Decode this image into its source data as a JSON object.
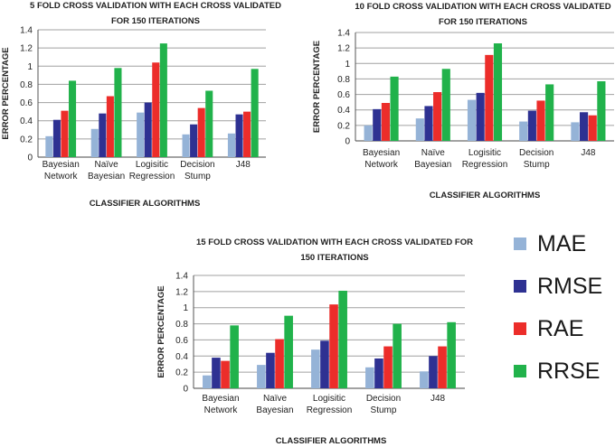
{
  "colors": {
    "MAE": "#95b3d7",
    "RMSE": "#2e3192",
    "RAE": "#ec2d2a",
    "RRSE": "#21b24b"
  },
  "legend": {
    "items": [
      {
        "label": "MAE",
        "color": "#95b3d7"
      },
      {
        "label": "RMSE",
        "color": "#2e3192"
      },
      {
        "label": "RAE",
        "color": "#ec2d2a"
      },
      {
        "label": "RRSE",
        "color": "#21b24b"
      }
    ]
  },
  "chart_data": [
    {
      "type": "bar",
      "title": [
        "5 FOLD CROSS VALIDATION WITH EACH CROSS VALIDATED",
        "FOR 150 ITERATIONS"
      ],
      "xlabel": "CLASSIFIER ALGORITHMS",
      "ylabel": "ERROR PERCENTAGE",
      "ylim": [
        0,
        1.4
      ],
      "yticks": [
        "0",
        "0.2",
        "0.4",
        "0.6",
        "0.8",
        "1",
        "1.2",
        "1.4"
      ],
      "categories": [
        [
          "Bayesian",
          "Network"
        ],
        [
          "Naïve",
          "Bayesian"
        ],
        [
          "Logisitic",
          "Regression"
        ],
        [
          "Decision",
          "Stump"
        ],
        [
          "J48"
        ]
      ],
      "grid": true,
      "series": [
        {
          "name": "MAE",
          "values": [
            0.23,
            0.31,
            0.49,
            0.25,
            0.26
          ]
        },
        {
          "name": "RMSE",
          "values": [
            0.41,
            0.48,
            0.6,
            0.36,
            0.47
          ]
        },
        {
          "name": "RAE",
          "values": [
            0.51,
            0.67,
            1.04,
            0.54,
            0.5
          ]
        },
        {
          "name": "RRSE",
          "values": [
            0.84,
            0.98,
            1.25,
            0.73,
            0.97
          ]
        }
      ]
    },
    {
      "type": "bar",
      "title": [
        "10 FOLD CROSS VALIDATION WITH EACH CROSS VALIDATED",
        "FOR 150 ITERATIONS"
      ],
      "xlabel": "CLASSIFIER ALGORITHMS",
      "ylabel": "ERROR PERCENTAGE",
      "ylim": [
        0,
        1.4
      ],
      "yticks": [
        "0",
        "0.2",
        "0.4",
        "0.6",
        "0.8",
        "1",
        "1.2",
        "1.4"
      ],
      "categories": [
        [
          "Bayesian",
          "Network"
        ],
        [
          "Naïve",
          "Bayesian"
        ],
        [
          "Logisitic",
          "Regression"
        ],
        [
          "Decision",
          "Stump"
        ],
        [
          "J48"
        ]
      ],
      "grid": true,
      "series": [
        {
          "name": "MAE",
          "values": [
            0.2,
            0.29,
            0.53,
            0.25,
            0.24
          ]
        },
        {
          "name": "RMSE",
          "values": [
            0.41,
            0.45,
            0.62,
            0.39,
            0.37
          ]
        },
        {
          "name": "RAE",
          "values": [
            0.49,
            0.63,
            1.11,
            0.52,
            0.33
          ]
        },
        {
          "name": "RRSE",
          "values": [
            0.83,
            0.93,
            1.26,
            0.73,
            0.77
          ]
        }
      ]
    },
    {
      "type": "bar",
      "title": [
        "15 FOLD CROSS VALIDATION WITH EACH CROSS VALIDATED FOR",
        "150 ITERATIONS"
      ],
      "xlabel": "CLASSIFIER ALGORITHMS",
      "ylabel": "ERROR PERCENTAGE",
      "ylim": [
        0,
        1.4
      ],
      "yticks": [
        "0",
        "0.2",
        "0.4",
        "0.6",
        "0.8",
        "1",
        "1.2",
        "1.4"
      ],
      "categories": [
        [
          "Bayesian",
          "Network"
        ],
        [
          "Naïve",
          "Bayesian"
        ],
        [
          "Logisitic",
          "Regression"
        ],
        [
          "Decision",
          "Stump"
        ],
        [
          "J48"
        ]
      ],
      "grid": true,
      "series": [
        {
          "name": "MAE",
          "values": [
            0.16,
            0.29,
            0.48,
            0.26,
            0.21
          ]
        },
        {
          "name": "RMSE",
          "values": [
            0.38,
            0.44,
            0.59,
            0.37,
            0.4
          ]
        },
        {
          "name": "RAE",
          "values": [
            0.34,
            0.61,
            1.04,
            0.52,
            0.52
          ]
        },
        {
          "name": "RRSE",
          "values": [
            0.78,
            0.9,
            1.21,
            0.8,
            0.82
          ]
        }
      ]
    }
  ]
}
